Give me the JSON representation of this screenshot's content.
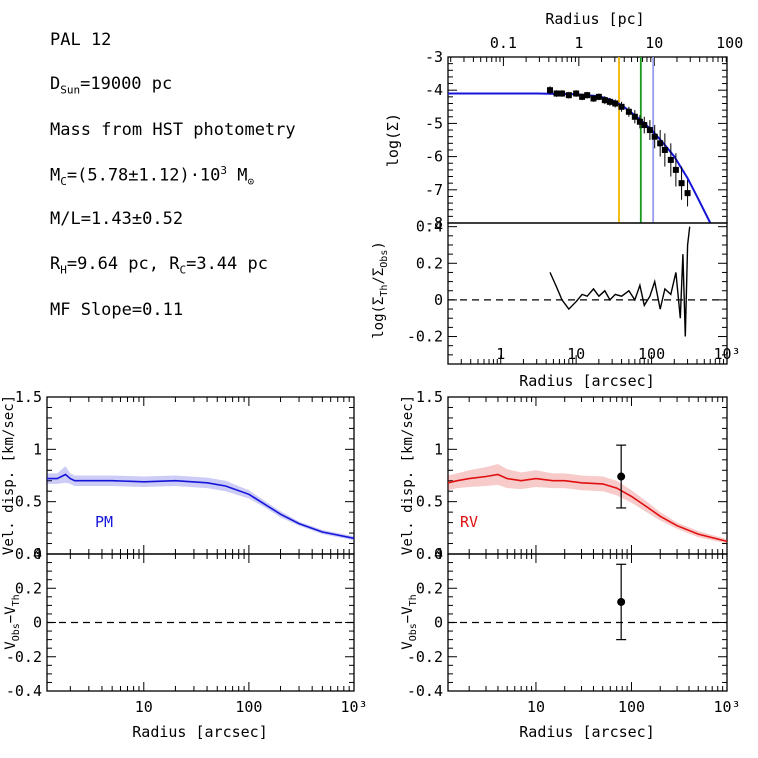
{
  "info": {
    "cluster": "PAL 12",
    "dsun_sym": "D",
    "dsun_sub": "Sun",
    "dsun_val": "=19000 pc",
    "mass_source": "Mass from HST photometry",
    "mc_sym": "M",
    "mc_sub": "C",
    "mc_val": "=(5.78±1.12)·10",
    "mc_exp": "3",
    "mc_unit": " M",
    "mc_unit_sub": "⊙",
    "ml": "M/L=1.43±0.52",
    "rh_sym": "R",
    "rh_sub": "H",
    "rh_val": "=9.64 pc, R",
    "rc_sub": "C",
    "rc_val": "=3.44 pc",
    "mf": "MF Slope=0.11"
  },
  "colors": {
    "pm": "#1515d9",
    "rv": "#e01010",
    "core_line": "#f0b400",
    "half_line": "#1a9a1a",
    "third_line": "#9a9aee"
  },
  "chart_data": [
    {
      "id": "density",
      "type": "scatter",
      "xlabel_top": "Radius [pc]",
      "top_ticks": [
        "0.1",
        "1",
        "10",
        "100"
      ],
      "top_tick_values_pc": [
        0.1,
        1,
        10,
        100
      ],
      "ylabel": "log(Σ)",
      "ylim": [
        -8,
        -3
      ],
      "yticks": [
        "-3",
        "-4",
        "-5",
        "-6",
        "-7",
        "-8"
      ],
      "xlim_arcsec": [
        0.2,
        1000
      ],
      "vlines_arcsec": [
        37,
        72,
        105
      ],
      "model": {
        "x": [
          0.2,
          1,
          3,
          10,
          20,
          30,
          40,
          60,
          80,
          100,
          150,
          200,
          300,
          400,
          600
        ],
        "y": [
          -4.1,
          -4.1,
          -4.1,
          -4.12,
          -4.18,
          -4.3,
          -4.45,
          -4.75,
          -5.0,
          -5.2,
          -5.65,
          -6.0,
          -6.65,
          -7.2,
          -8.0
        ]
      },
      "points": {
        "x": [
          4.5,
          5.5,
          6.5,
          8,
          10,
          12,
          14,
          17,
          20,
          24,
          28,
          33,
          40,
          50,
          60,
          70,
          80,
          95,
          110,
          130,
          150,
          180,
          210,
          250,
          300
        ],
        "y": [
          -4.0,
          -4.1,
          -4.1,
          -4.15,
          -4.1,
          -4.2,
          -4.15,
          -4.25,
          -4.2,
          -4.3,
          -4.35,
          -4.4,
          -4.5,
          -4.65,
          -4.8,
          -4.95,
          -5.05,
          -5.2,
          -5.4,
          -5.6,
          -5.8,
          -6.1,
          -6.4,
          -6.8,
          -7.1
        ],
        "err": [
          0.12,
          0.1,
          0.1,
          0.1,
          0.1,
          0.1,
          0.1,
          0.1,
          0.1,
          0.12,
          0.12,
          0.12,
          0.15,
          0.15,
          0.2,
          0.2,
          0.25,
          0.3,
          0.35,
          0.4,
          0.5,
          0.5,
          0.5,
          0.5,
          0.4
        ]
      }
    },
    {
      "id": "density_residual",
      "type": "line",
      "xlabel": "Radius [arcsec]",
      "ylabel": "log(Σ_Th/Σ_Obs)",
      "ylim": [
        -0.35,
        0.42
      ],
      "yticks": [
        "0.4",
        "0.2",
        "0",
        "-0.2"
      ],
      "xticks": [
        "1",
        "10",
        "100",
        "10³"
      ],
      "x": [
        4.5,
        5.5,
        6.5,
        8,
        10,
        12,
        14,
        17,
        20,
        24,
        28,
        33,
        40,
        50,
        60,
        70,
        80,
        95,
        110,
        130,
        150,
        180,
        210,
        240,
        260,
        280,
        300,
        320
      ],
      "y": [
        0.15,
        0.07,
        0.0,
        -0.05,
        -0.01,
        0.03,
        0.02,
        0.06,
        0.02,
        0.05,
        0.0,
        0.03,
        0.02,
        0.05,
        0.0,
        0.08,
        -0.03,
        0.02,
        0.1,
        -0.05,
        0.06,
        0.03,
        0.15,
        -0.1,
        0.25,
        -0.2,
        0.3,
        0.4
      ]
    },
    {
      "id": "pm_dispersion",
      "type": "line",
      "label": "PM",
      "ylabel": "Vel. disp. [km/sec]",
      "ylim": [
        0,
        1.5
      ],
      "yticks": [
        "1.5",
        "1",
        "0.5",
        "0"
      ],
      "x": [
        1.2,
        1.5,
        1.8,
        2.0,
        2.2,
        3,
        5,
        10,
        20,
        40,
        60,
        100,
        150,
        200,
        300,
        500,
        1000
      ],
      "y": [
        0.72,
        0.72,
        0.76,
        0.72,
        0.7,
        0.7,
        0.7,
        0.69,
        0.7,
        0.68,
        0.65,
        0.57,
        0.46,
        0.38,
        0.29,
        0.21,
        0.15
      ],
      "band_halfwidth": [
        0.05,
        0.05,
        0.08,
        0.05,
        0.05,
        0.05,
        0.05,
        0.05,
        0.05,
        0.05,
        0.05,
        0.04,
        0.03,
        0.03,
        0.02,
        0.02,
        0.02
      ]
    },
    {
      "id": "pm_residual",
      "type": "line",
      "xlabel": "Radius [arcsec]",
      "ylabel": "V_Obs−V_Th",
      "ylim": [
        -0.4,
        0.4
      ],
      "yticks": [
        "0.4",
        "0.2",
        "0",
        "-0.2",
        "-0.4"
      ],
      "xticks": [
        "10",
        "100",
        "10³"
      ]
    },
    {
      "id": "rv_dispersion",
      "type": "line",
      "label": "RV",
      "ylabel": "Vel. disp. [km/sec]",
      "ylim": [
        0,
        1.5
      ],
      "yticks": [
        "1.5",
        "1",
        "0.5",
        "0"
      ],
      "x": [
        1.2,
        1.5,
        2,
        3,
        4,
        5,
        7,
        10,
        15,
        20,
        30,
        50,
        70,
        100,
        150,
        200,
        300,
        500,
        1000
      ],
      "y": [
        0.68,
        0.7,
        0.72,
        0.74,
        0.76,
        0.72,
        0.7,
        0.72,
        0.7,
        0.7,
        0.68,
        0.67,
        0.63,
        0.55,
        0.44,
        0.36,
        0.27,
        0.19,
        0.12
      ],
      "band_halfwidth": [
        0.07,
        0.07,
        0.08,
        0.09,
        0.1,
        0.09,
        0.08,
        0.08,
        0.07,
        0.07,
        0.07,
        0.07,
        0.07,
        0.06,
        0.05,
        0.04,
        0.03,
        0.03,
        0.02
      ],
      "points": {
        "x": [
          78
        ],
        "y": [
          0.74
        ],
        "err": [
          0.3
        ]
      }
    },
    {
      "id": "rv_residual",
      "type": "scatter",
      "xlabel": "Radius [arcsec]",
      "ylabel": "V_Obs−V_Th",
      "ylim": [
        -0.4,
        0.4
      ],
      "yticks": [
        "0.4",
        "0.2",
        "0",
        "-0.2",
        "-0.4"
      ],
      "xticks": [
        "10",
        "100",
        "10³"
      ],
      "points": {
        "x": [
          78
        ],
        "y": [
          0.12
        ],
        "err": [
          0.22
        ]
      }
    }
  ]
}
